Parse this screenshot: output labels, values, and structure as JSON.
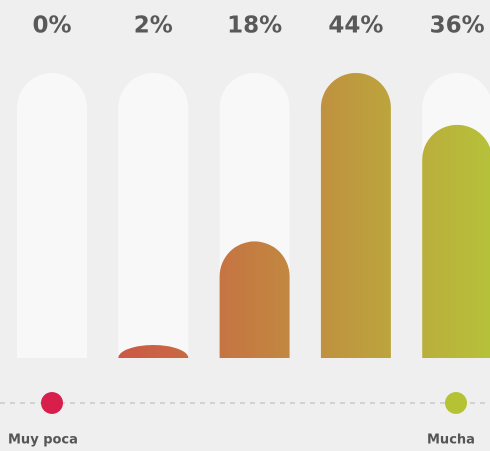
{
  "chart_data": {
    "type": "bar",
    "values": [
      0,
      2,
      18,
      44,
      36
    ],
    "value_labels": [
      "0%",
      "2%",
      "18%",
      "44%",
      "36%"
    ],
    "ylim": [
      0,
      44
    ],
    "gradient": [
      "#d23a48",
      "#b6c13a"
    ],
    "scale_labels": {
      "low": "Muy poca",
      "high": "Mucha"
    },
    "scale_colors": {
      "low": "#d81e4b",
      "high": "#b5c234"
    }
  }
}
